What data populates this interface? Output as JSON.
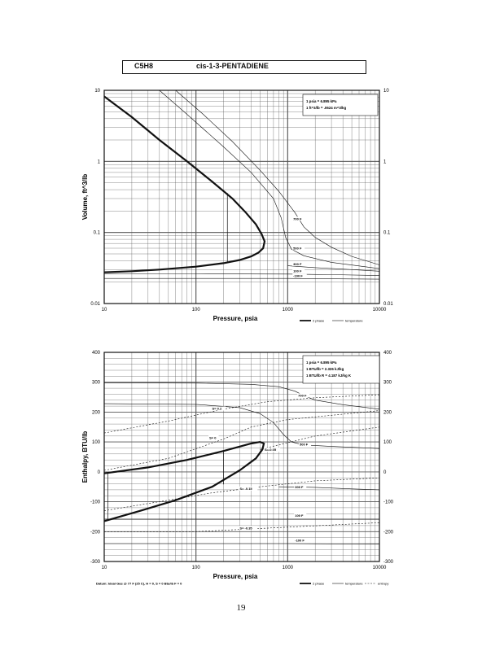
{
  "header": {
    "formula": "C5H8",
    "name": "cis-1-3-PENTADIENE"
  },
  "page_number": "19",
  "chart_data": [
    {
      "type": "line",
      "xscale": "log",
      "yscale": "log",
      "xlabel": "Pressure, psia",
      "ylabel": "Volume, ft^3/lb",
      "xlim": [
        10,
        10000
      ],
      "ylim": [
        0.01,
        10
      ],
      "xticks": [
        "10",
        "100",
        "1000",
        "10000"
      ],
      "yticks": [
        "0.01",
        "0.1",
        "1",
        "10"
      ],
      "conversions": [
        "1 psia = 6.895 kPa",
        "1 ft^3/lb = .0624 m^3/kg"
      ],
      "legend": [
        "2 phase",
        "temperature"
      ],
      "series": [
        {
          "name": "2 phase",
          "style": "bold",
          "points": [
            [
              10,
              8.2
            ],
            [
              20,
              4.2
            ],
            [
              40,
              2.0
            ],
            [
              80,
              1.0
            ],
            [
              150,
              0.52
            ],
            [
              250,
              0.3
            ],
            [
              350,
              0.19
            ],
            [
              450,
              0.13
            ],
            [
              520,
              0.095
            ],
            [
              560,
              0.075
            ],
            [
              540,
              0.06
            ],
            [
              480,
              0.052
            ],
            [
              400,
              0.046
            ],
            [
              300,
              0.041
            ],
            [
              200,
              0.037
            ],
            [
              100,
              0.033
            ],
            [
              40,
              0.03
            ],
            [
              20,
              0.0285
            ],
            [
              10,
              0.0275
            ]
          ]
        },
        {
          "name": "700 F",
          "label": "700 F",
          "style": "thin",
          "points": [
            [
              60,
              10
            ],
            [
              120,
              4.6
            ],
            [
              250,
              1.9
            ],
            [
              500,
              0.75
            ],
            [
              800,
              0.38
            ],
            [
              1200,
              0.19
            ],
            [
              1500,
              0.12
            ],
            [
              2000,
              0.085
            ],
            [
              3000,
              0.062
            ],
            [
              5000,
              0.046
            ],
            [
              10000,
              0.035
            ]
          ]
        },
        {
          "name": "500 F",
          "label": "500 F",
          "style": "thin",
          "points": [
            [
              40,
              10
            ],
            [
              80,
              4.6
            ],
            [
              200,
              1.6
            ],
            [
              400,
              0.7
            ],
            [
              700,
              0.3
            ],
            [
              850,
              0.16
            ],
            [
              950,
              0.085
            ],
            [
              1100,
              0.058
            ],
            [
              1500,
              0.047
            ],
            [
              3000,
              0.038
            ],
            [
              10000,
              0.031
            ]
          ]
        },
        {
          "name": "300 F",
          "label": "300 F",
          "style": "thin",
          "points": [
            [
              1000,
              0.034
            ],
            [
              2000,
              0.032
            ],
            [
              5000,
              0.03
            ],
            [
              10000,
              0.0285
            ]
          ]
        },
        {
          "name": "100 F",
          "label": "100 F",
          "style": "thin",
          "points": [
            [
              10,
              0.0262
            ],
            [
              100,
              0.0262
            ],
            [
              1000,
              0.026
            ],
            [
              3000,
              0.0255
            ],
            [
              10000,
              0.0248
            ]
          ]
        },
        {
          "name": "-100 F",
          "label": "-100 F",
          "style": "thin",
          "points": [
            [
              10,
              0.0225
            ],
            [
              1000,
              0.0225
            ],
            [
              10000,
              0.022
            ]
          ]
        }
      ]
    },
    {
      "type": "line",
      "xscale": "log",
      "yscale": "linear",
      "xlabel": "Pressure, psia",
      "ylabel": "Enthalpy, BTU/lb",
      "xlim": [
        10,
        10000
      ],
      "ylim": [
        -300,
        400
      ],
      "xticks": [
        "10",
        "100",
        "1000",
        "10000"
      ],
      "yticks": [
        "-300",
        "-200",
        "-100",
        "0",
        "100",
        "200",
        "300",
        "400"
      ],
      "conversions": [
        "1 psia = 6.895 kPa",
        "1 BTU/lb = 2.326 kJ/kg",
        "1 BTU/lb R = 4.187 kJ/kg K"
      ],
      "datum": "Datum: Ideal Gas @ 77 F (25 C), H = 0, S = 0 Btu/lb F = 0",
      "legend": [
        "2 phase",
        "temperature",
        "entropy"
      ],
      "series": [
        {
          "name": "2 phase",
          "style": "bold",
          "points": [
            [
              10,
              -5
            ],
            [
              30,
              15
            ],
            [
              80,
              40
            ],
            [
              200,
              70
            ],
            [
              400,
              95
            ],
            [
              500,
              100
            ],
            [
              550,
              95
            ],
            [
              530,
              75
            ],
            [
              450,
              45
            ],
            [
              300,
              5
            ],
            [
              150,
              -50
            ],
            [
              60,
              -95
            ],
            [
              25,
              -130
            ],
            [
              10,
              -165
            ]
          ]
        },
        {
          "name": "700 F",
          "label": "700 F",
          "style": "thin",
          "points": [
            [
              10,
              298
            ],
            [
              100,
              297
            ],
            [
              400,
              293
            ],
            [
              800,
              285
            ],
            [
              1200,
              270
            ],
            [
              1500,
              255
            ],
            [
              2000,
              240
            ],
            [
              4000,
              225
            ],
            [
              10000,
              210
            ]
          ]
        },
        {
          "name": "500 F",
          "label": "500 F",
          "style": "thin",
          "points": [
            [
              10,
              228
            ],
            [
              100,
              226
            ],
            [
              300,
              215
            ],
            [
              500,
              195
            ],
            [
              700,
              165
            ],
            [
              900,
              125
            ],
            [
              1100,
              100
            ],
            [
              1500,
              90
            ],
            [
              3000,
              85
            ],
            [
              10000,
              78
            ]
          ]
        },
        {
          "name": "300 F",
          "label": "300 F",
          "style": "thin",
          "points": [
            [
              800,
              -50
            ],
            [
              2000,
              -52
            ],
            [
              5000,
              -57
            ],
            [
              10000,
              -60
            ]
          ]
        },
        {
          "name": "100 F",
          "label": "100 F",
          "style": "thin",
          "points": [
            [
              10,
              -158
            ],
            [
              1000,
              -158
            ],
            [
              10000,
              -158
            ]
          ]
        },
        {
          "name": "-100 F",
          "label": "-100 F",
          "style": "thin",
          "points": [
            [
              10,
              -240
            ],
            [
              1000,
              -240
            ],
            [
              10000,
              -242
            ]
          ]
        },
        {
          "name": "S=0.2",
          "label": "S= 0.2",
          "style": "dashed",
          "points": [
            [
              10,
              130
            ],
            [
              50,
              170
            ],
            [
              200,
              210
            ],
            [
              600,
              235
            ],
            [
              2000,
              248
            ],
            [
              10000,
              258
            ]
          ]
        },
        {
          "name": "S=0",
          "label": "S= 0",
          "style": "dashed",
          "points": [
            [
              10,
              5
            ],
            [
              50,
              45
            ],
            [
              200,
              110
            ],
            [
              400,
              150
            ],
            [
              1000,
              175
            ],
            [
              10000,
              205
            ]
          ]
        },
        {
          "name": "S=-0.05",
          "label": "S=-0.05",
          "style": "dashed",
          "points": [
            [
              500,
              75
            ],
            [
              2000,
              120
            ],
            [
              10000,
              150
            ]
          ]
        },
        {
          "name": "S=-0.15",
          "label": "S= -0.15",
          "style": "dashed",
          "points": [
            [
              10,
              -130
            ],
            [
              50,
              -95
            ],
            [
              150,
              -70
            ],
            [
              500,
              -50
            ],
            [
              2000,
              -30
            ],
            [
              10000,
              -20
            ]
          ]
        },
        {
          "name": "S=-0.35",
          "label": "S= -0.35",
          "style": "dashed",
          "points": [
            [
              10,
              -200
            ],
            [
              100,
              -200
            ],
            [
              1000,
              -185
            ],
            [
              10000,
              -170
            ]
          ]
        }
      ]
    }
  ]
}
